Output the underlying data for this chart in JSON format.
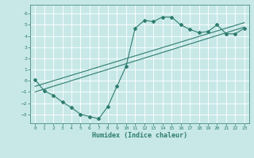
{
  "title": "",
  "xlabel": "Humidex (Indice chaleur)",
  "ylabel": "",
  "xlim": [
    -0.5,
    23.5
  ],
  "ylim": [
    -3.8,
    6.8
  ],
  "xticks": [
    0,
    1,
    2,
    3,
    4,
    5,
    6,
    7,
    8,
    9,
    10,
    11,
    12,
    13,
    14,
    15,
    16,
    17,
    18,
    19,
    20,
    21,
    22,
    23
  ],
  "yticks": [
    -3,
    -2,
    -1,
    0,
    1,
    2,
    3,
    4,
    5,
    6
  ],
  "bg_color": "#c8e8e8",
  "line_color": "#2e7d6e",
  "grid_color": "#ffffff",
  "curve1_x": [
    0,
    1,
    2,
    3,
    4,
    5,
    6,
    7,
    8,
    9,
    10,
    11,
    12,
    13,
    14,
    15,
    16,
    17,
    18,
    19,
    20,
    21,
    22,
    23
  ],
  "curve1_y": [
    0.1,
    -0.9,
    -1.3,
    -1.9,
    -2.4,
    -3.0,
    -3.2,
    -3.4,
    -2.3,
    -0.5,
    1.3,
    4.7,
    5.4,
    5.3,
    5.7,
    5.7,
    5.0,
    4.6,
    4.3,
    4.4,
    5.0,
    4.2,
    4.2,
    4.7
  ],
  "line2_x": [
    0,
    23
  ],
  "line2_y": [
    -1.0,
    4.8
  ],
  "line3_x": [
    0,
    23
  ],
  "line3_y": [
    -0.5,
    5.2
  ],
  "tick_fontsize": 4.5,
  "xlabel_fontsize": 6.0,
  "marker_size": 2.0,
  "line_width": 0.8
}
